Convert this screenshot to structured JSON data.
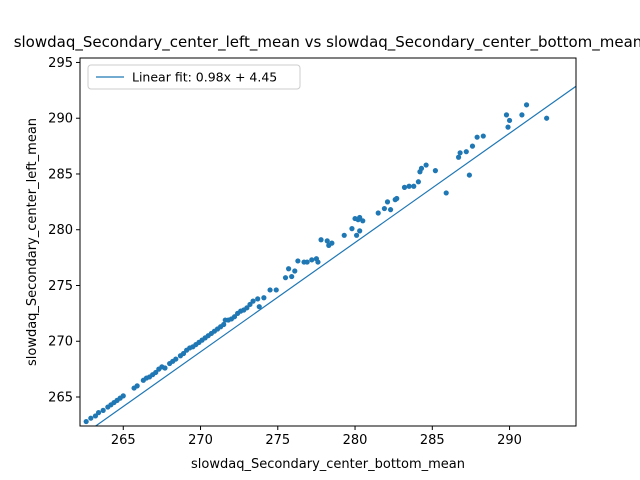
{
  "chart_data": {
    "type": "scatter",
    "title": "slowdaq_Secondary_center_left_mean vs slowdaq_Secondary_center_bottom_mean",
    "xlabel": "slowdaq_Secondary_center_bottom_mean",
    "ylabel": "slowdaq_Secondary_center_left_mean",
    "xlim": [
      262.2,
      294.3
    ],
    "ylim": [
      262.4,
      295.4
    ],
    "xticks": [
      265,
      270,
      275,
      280,
      285,
      290
    ],
    "yticks": [
      265,
      270,
      275,
      280,
      285,
      290,
      295
    ],
    "grid": false,
    "legend_position": "top-left",
    "colors": {
      "points": "#1f77b4",
      "fit_line": "#1f77b4"
    },
    "fit": {
      "slope": 0.98,
      "intercept": 4.45,
      "label": "Linear fit: 0.98x + 4.45"
    },
    "series": [
      {
        "name": "",
        "points": [
          [
            262.6,
            262.8
          ],
          [
            262.9,
            263.1
          ],
          [
            263.2,
            263.3
          ],
          [
            263.4,
            263.6
          ],
          [
            263.7,
            263.8
          ],
          [
            264.0,
            264.1
          ],
          [
            264.2,
            264.3
          ],
          [
            264.4,
            264.5
          ],
          [
            264.6,
            264.7
          ],
          [
            264.8,
            264.9
          ],
          [
            265.0,
            265.1
          ],
          [
            265.7,
            265.8
          ],
          [
            265.9,
            266.0
          ],
          [
            266.3,
            266.5
          ],
          [
            266.5,
            266.7
          ],
          [
            266.7,
            266.8
          ],
          [
            266.9,
            267.0
          ],
          [
            267.1,
            267.2
          ],
          [
            267.3,
            267.5
          ],
          [
            267.5,
            267.7
          ],
          [
            267.7,
            267.6
          ],
          [
            268.0,
            268.0
          ],
          [
            268.2,
            268.2
          ],
          [
            268.4,
            268.4
          ],
          [
            268.7,
            268.7
          ],
          [
            268.9,
            268.9
          ],
          [
            269.1,
            269.2
          ],
          [
            269.3,
            269.4
          ],
          [
            269.5,
            269.5
          ],
          [
            269.7,
            269.7
          ],
          [
            269.9,
            269.9
          ],
          [
            270.1,
            270.1
          ],
          [
            270.3,
            270.3
          ],
          [
            270.5,
            270.5
          ],
          [
            270.7,
            270.7
          ],
          [
            270.9,
            270.9
          ],
          [
            271.1,
            271.1
          ],
          [
            271.3,
            271.3
          ],
          [
            271.5,
            271.5
          ],
          [
            271.6,
            271.9
          ],
          [
            271.8,
            271.9
          ],
          [
            272.0,
            272.0
          ],
          [
            272.2,
            272.2
          ],
          [
            272.4,
            272.5
          ],
          [
            272.6,
            272.7
          ],
          [
            272.8,
            272.8
          ],
          [
            273.0,
            273.0
          ],
          [
            273.2,
            273.3
          ],
          [
            273.4,
            273.6
          ],
          [
            273.7,
            273.8
          ],
          [
            273.8,
            273.1
          ],
          [
            274.1,
            273.9
          ],
          [
            274.5,
            274.6
          ],
          [
            274.9,
            274.6
          ],
          [
            275.5,
            275.7
          ],
          [
            275.7,
            276.5
          ],
          [
            275.9,
            275.8
          ],
          [
            276.1,
            276.3
          ],
          [
            276.3,
            277.2
          ],
          [
            276.7,
            277.1
          ],
          [
            276.9,
            277.1
          ],
          [
            277.2,
            277.3
          ],
          [
            277.5,
            277.4
          ],
          [
            277.6,
            277.1
          ],
          [
            277.8,
            279.1
          ],
          [
            278.2,
            279.0
          ],
          [
            278.3,
            278.6
          ],
          [
            278.5,
            278.8
          ],
          [
            279.3,
            279.5
          ],
          [
            279.8,
            280.1
          ],
          [
            280.0,
            281.0
          ],
          [
            280.2,
            280.9
          ],
          [
            280.3,
            281.1
          ],
          [
            280.5,
            280.8
          ],
          [
            280.1,
            279.5
          ],
          [
            280.3,
            279.9
          ],
          [
            281.5,
            281.5
          ],
          [
            281.9,
            281.9
          ],
          [
            282.1,
            282.5
          ],
          [
            282.3,
            281.8
          ],
          [
            282.6,
            282.7
          ],
          [
            282.7,
            282.8
          ],
          [
            283.2,
            283.8
          ],
          [
            283.5,
            283.9
          ],
          [
            283.8,
            283.9
          ],
          [
            284.1,
            284.3
          ],
          [
            284.2,
            285.2
          ],
          [
            284.3,
            285.5
          ],
          [
            284.6,
            285.8
          ],
          [
            285.2,
            285.3
          ],
          [
            285.9,
            283.3
          ],
          [
            286.7,
            286.5
          ],
          [
            286.8,
            286.9
          ],
          [
            287.2,
            287.0
          ],
          [
            287.4,
            284.9
          ],
          [
            287.6,
            287.5
          ],
          [
            287.9,
            288.3
          ],
          [
            288.3,
            288.4
          ],
          [
            289.8,
            290.3
          ],
          [
            289.9,
            289.2
          ],
          [
            290.0,
            289.8
          ],
          [
            290.8,
            290.3
          ],
          [
            291.1,
            291.2
          ],
          [
            292.4,
            290.0
          ]
        ]
      }
    ]
  }
}
